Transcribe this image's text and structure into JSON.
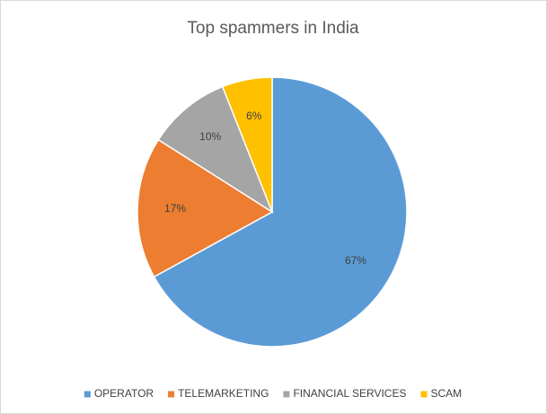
{
  "chart_data": {
    "type": "pie",
    "title": "Top spammers in India",
    "categories": [
      "OPERATOR",
      "TELEMARKETING",
      "FINANCIAL SERVICES",
      "SCAM"
    ],
    "values": [
      67,
      17,
      10,
      6
    ],
    "value_labels": [
      "67%",
      "17%",
      "10%",
      "6%"
    ],
    "colors": [
      "#5b9bd5",
      "#ed7d31",
      "#a5a5a5",
      "#ffc000"
    ],
    "legend": "bottom"
  }
}
